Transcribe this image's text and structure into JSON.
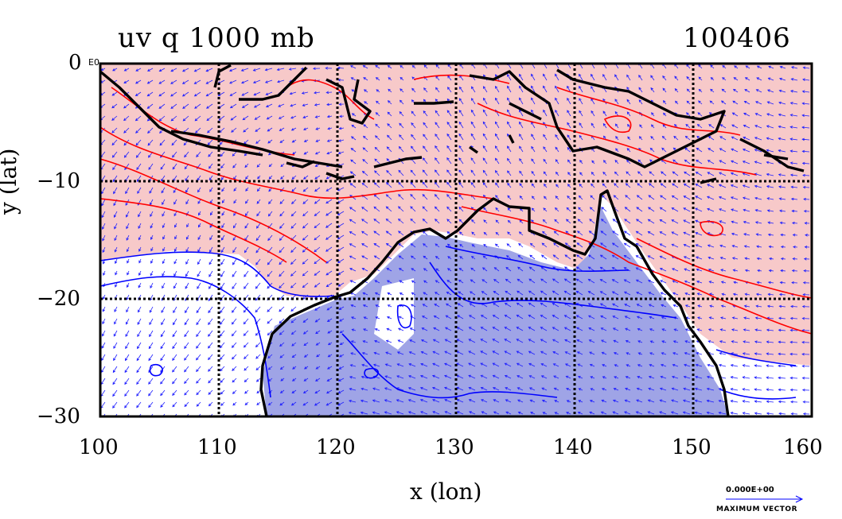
{
  "title_left": "uv q 1000 mb",
  "title_right": "100406",
  "xlabel": "x (lon)",
  "ylabel": "y (lat)",
  "x_ticks": [
    "100",
    "110",
    "120",
    "130",
    "140",
    "150",
    "160"
  ],
  "y_ticks": [
    "0",
    "−10",
    "−20",
    "−30"
  ],
  "corner_exponent": "E0",
  "vector_scale_label": "0.000E+00",
  "vector_caption": "MAXIMUM VECTOR",
  "colors": {
    "positive_fill": "#f7c9c9",
    "negative_fill": "#9fa4e6",
    "positive_contour": "#ff0000",
    "negative_contour": "#0000ff",
    "land": "#000000"
  }
}
